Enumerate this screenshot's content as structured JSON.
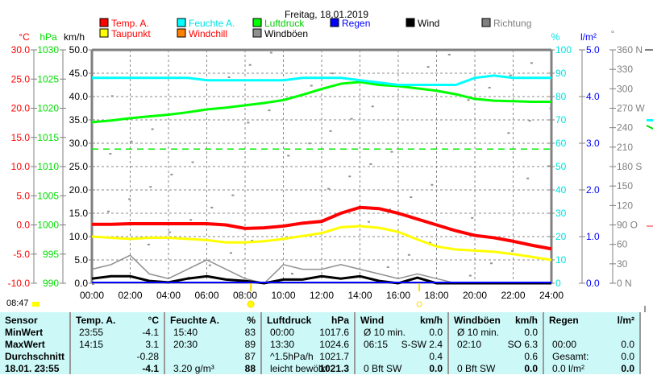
{
  "title": "Freitag, 18.01.2019",
  "legend": [
    {
      "label": "Temp. A.",
      "color": "#ff0000",
      "text": "#ff0000"
    },
    {
      "label": "Feuchte A.",
      "color": "#00ffff",
      "text": "#00e0e0"
    },
    {
      "label": "Luftdruck",
      "color": "#00ff00",
      "text": "#00cc00"
    },
    {
      "label": "Regen",
      "color": "#0000ff",
      "text": "#0000ff"
    },
    {
      "label": "Wind",
      "color": "#000000",
      "text": "#000000"
    },
    {
      "label": "Richtung",
      "color": "#808080",
      "text": "#808080"
    },
    {
      "label": "Taupunkt",
      "color": "#ffff00",
      "text": "#ff0000"
    },
    {
      "label": "Windchill",
      "color": "#ff8000",
      "text": "#ff0000"
    },
    {
      "label": "Windböen",
      "color": "#909090",
      "text": "#000000"
    }
  ],
  "axes": {
    "temp": {
      "unit": "°C",
      "ticks": [
        "30.0",
        "25.0",
        "20.0",
        "15.0",
        "10.0",
        "5.0",
        "0.0",
        "-5.0",
        "-10.0"
      ]
    },
    "press": {
      "unit": "hPa",
      "ticks": [
        "1030",
        "1025",
        "1020",
        "1015",
        "1010",
        "1005",
        "1000",
        "995",
        "990"
      ]
    },
    "wind": {
      "unit": "km/h",
      "ticks": [
        "50.0",
        "45.0",
        "40.0",
        "35.0",
        "30.0",
        "25.0",
        "20.0",
        "15.0",
        "10.0",
        "5.0",
        "0.0"
      ]
    },
    "hum": {
      "unit": "%",
      "ticks": [
        "100",
        "90",
        "80",
        "70",
        "60",
        "50",
        "40",
        "30",
        "20",
        "10",
        "0"
      ]
    },
    "rain": {
      "unit": "l/m²",
      "ticks": [
        "5.0",
        "4.0",
        "3.0",
        "2.0",
        "1.0",
        "0.0"
      ]
    },
    "dir": {
      "unit": "°",
      "ticks": [
        "360 N",
        "330",
        "300",
        "270 W",
        "240",
        "210",
        "180 S",
        "150",
        "120",
        "90  O",
        "60",
        "30",
        "0   N"
      ]
    },
    "x": [
      "00:00",
      "02:00",
      "04:00",
      "06:00",
      "08:00",
      "10:00",
      "12:00",
      "14:00",
      "16:00",
      "18:00",
      "20:00",
      "22:00",
      "24:00"
    ]
  },
  "chart_data": {
    "type": "line",
    "x_hours": [
      0,
      1,
      2,
      3,
      4,
      5,
      6,
      7,
      8,
      9,
      10,
      11,
      12,
      13,
      14,
      15,
      16,
      17,
      18,
      19,
      20,
      21,
      22,
      23,
      24
    ],
    "series": [
      {
        "name": "Temp. A.",
        "unit": "°C",
        "values": [
          0.1,
          0.1,
          0.2,
          0.2,
          0.2,
          0.2,
          0.2,
          0.0,
          -0.6,
          -0.5,
          -0.2,
          0.3,
          0.6,
          2.0,
          3.0,
          2.8,
          2.0,
          1.0,
          0.0,
          -1.0,
          -1.8,
          -2.2,
          -2.8,
          -3.5,
          -4.1
        ]
      },
      {
        "name": "Taupunkt",
        "unit": "°C",
        "values": [
          -2.0,
          -2.2,
          -2.4,
          -2.2,
          -2.2,
          -2.4,
          -2.6,
          -3.0,
          -3.0,
          -2.8,
          -2.4,
          -1.9,
          -1.4,
          -0.4,
          -0.2,
          -0.5,
          -1.2,
          -2.5,
          -3.7,
          -4.2,
          -4.4,
          -4.6,
          -5.0,
          -5.5,
          -6.0
        ]
      },
      {
        "name": "Feuchte A.",
        "unit": "%",
        "values": [
          88,
          88,
          88,
          88,
          88,
          88,
          87,
          87,
          87,
          87,
          87,
          88,
          88,
          88,
          87,
          86,
          85,
          85,
          85,
          85,
          88,
          89,
          88,
          88,
          88
        ]
      },
      {
        "name": "Luftdruck",
        "unit": "hPa",
        "values": [
          1017.6,
          1017.9,
          1018.3,
          1018.6,
          1018.9,
          1019.3,
          1019.8,
          1020.1,
          1020.5,
          1020.9,
          1021.4,
          1022.3,
          1023.3,
          1024.2,
          1024.5,
          1024.0,
          1023.8,
          1023.4,
          1023.0,
          1022.4,
          1021.6,
          1021.3,
          1021.2,
          1021.1,
          1021.1
        ]
      },
      {
        "name": "Wind",
        "unit": "km/h",
        "values": [
          1.0,
          1.5,
          1.5,
          0.5,
          0.2,
          1.0,
          1.5,
          0.8,
          0.5,
          0,
          0.8,
          0.8,
          1.5,
          1.0,
          1.5,
          0.5,
          0,
          1.2,
          0,
          0,
          0,
          0,
          0,
          0,
          0
        ]
      },
      {
        "name": "Windböen",
        "unit": "km/h",
        "values": [
          3,
          4,
          6,
          2,
          1,
          3,
          5,
          3,
          1,
          0,
          4,
          3,
          3,
          4,
          3,
          2,
          1,
          2,
          1,
          0,
          0,
          0,
          0,
          0,
          0
        ]
      }
    ],
    "reference_pressure": 1013.0
  },
  "now": "08:47",
  "table": {
    "headers": [
      [
        "Sensor",
        ""
      ],
      [
        "Temp. A.",
        "°C"
      ],
      [
        "Feuchte A.",
        "%"
      ],
      [
        "Luftdruck",
        "hPa"
      ],
      [
        "Wind",
        "km/h"
      ],
      [
        "Windböen",
        "km/h"
      ],
      [
        "Regen",
        "l/m²"
      ]
    ],
    "rows": [
      {
        "label": "MinWert",
        "cells": [
          [
            "23:55",
            "-4.1"
          ],
          [
            "15:40",
            "83"
          ],
          [
            "00:00",
            "1017.6"
          ],
          [
            "Ø 10 min.",
            "0.0"
          ],
          [
            "Ø 10 min.",
            "0.0"
          ],
          [
            "",
            ""
          ]
        ]
      },
      {
        "label": "MaxWert",
        "cells": [
          [
            "14:15",
            "3.1"
          ],
          [
            "20:30",
            "89"
          ],
          [
            "13:30",
            "1024.6"
          ],
          [
            "06:15",
            "S-SW 2.4"
          ],
          [
            "02:10",
            "SO 6.3"
          ],
          [
            "00:00",
            "0.0"
          ]
        ]
      },
      {
        "label": "Durchschnitt",
        "cells": [
          [
            "",
            "-0.28"
          ],
          [
            "",
            "87"
          ],
          [
            "^1.5hPa/h",
            "1021.7"
          ],
          [
            "",
            "0.4"
          ],
          [
            "",
            "0.6"
          ],
          [
            "Gesamt:",
            "0.0"
          ]
        ]
      },
      {
        "label": "18.01. 23:55",
        "cells": [
          [
            "",
            "-4.1"
          ],
          [
            "3.20 g/m³",
            "88"
          ],
          [
            "leicht bewölkt",
            "1021.3"
          ],
          [
            "0 Bft SW",
            "0.0"
          ],
          [
            "0 Bft SW",
            "0.0"
          ],
          [
            "0.0 l/m²",
            "0.0"
          ]
        ]
      }
    ]
  }
}
